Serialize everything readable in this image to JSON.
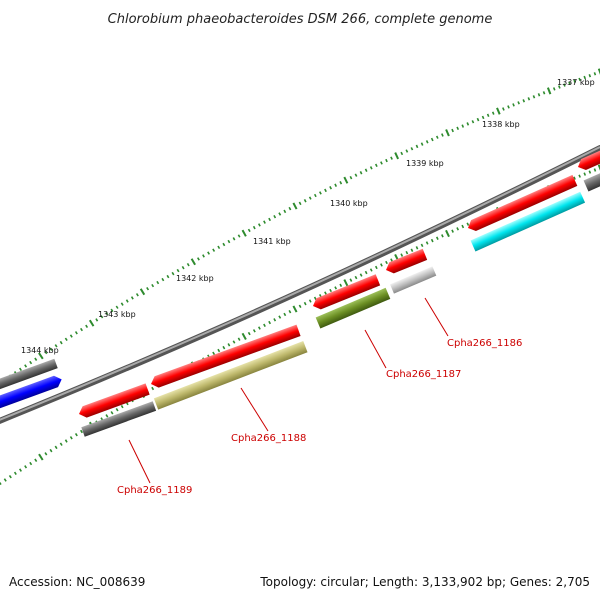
{
  "title": "Chlorobium phaeobacteroides DSM 266, complete genome",
  "ticks": [
    {
      "label": "1344 kbp"
    },
    {
      "label": "1343 kbp"
    },
    {
      "label": "1342 kbp"
    },
    {
      "label": "1341 kbp"
    },
    {
      "label": "1340 kbp"
    },
    {
      "label": "1339 kbp"
    },
    {
      "label": "1338 kbp"
    },
    {
      "label": "1337 kbp"
    }
  ],
  "genes": [
    {
      "name": "Cpha266_1186"
    },
    {
      "name": "Cpha266_1187"
    },
    {
      "name": "Cpha266_1188"
    },
    {
      "name": "Cpha266_1189"
    }
  ],
  "colors": {
    "cds": "#ff0000",
    "label": "#cc0000",
    "backbone": "#888888",
    "tick": "#2e8b2e",
    "gray_feature": "#666666",
    "blue_feature": "#0000ff",
    "cyan_feature": "#00e5ee",
    "olive_feature": "#6b8e23",
    "khaki_feature": "#bdb76b",
    "light_gray_feature": "#c0c0c0"
  },
  "footer": {
    "accession": "Accession: NC_008639",
    "summary": "Topology: circular; Length: 3,133,902 bp; Genes: 2,705"
  }
}
